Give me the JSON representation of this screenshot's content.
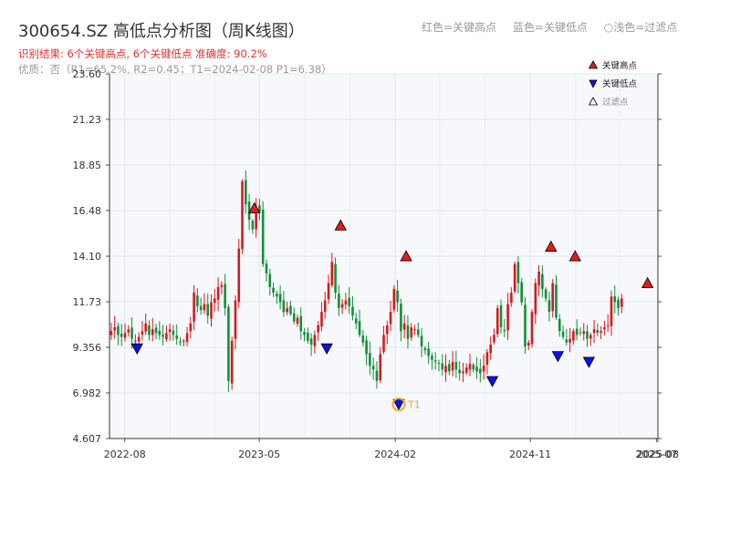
{
  "header": {
    "title": "300654.SZ 高低点分析图（周K线图）",
    "legend_red": "红色=关键高点",
    "legend_blue": "蓝色=关键低点",
    "legend_hollow": "○浅色=过滤点",
    "result_text": "识别结果: 6个关键高点, 6个关键低点  准确度: 90.2%",
    "quality_text": "优质：否（R1=65.2%, R2=0.45；T1=2024-02-08 P1=6.38）"
  },
  "colors": {
    "up": "#d9191c",
    "down": "#138f3b",
    "high_marker": "#e41a1c",
    "low_marker": "#1010e6",
    "t1_ring": "#f5a623",
    "plot_bg": "#f6f8fb",
    "result_text": "#e0302f"
  },
  "chart_data": {
    "type": "candlestick",
    "title": "300654.SZ 高低点分析图（周K线图）",
    "x_start": "2022-07-01",
    "x_end": "2025-07-18",
    "x_ticks": [
      "2022-08",
      "2023-05",
      "2024-02",
      "2024-11",
      "2025-07",
      "2025-08"
    ],
    "ylim": [
      4.607,
      23.6
    ],
    "y_ticks": [
      "4.607",
      "6.982",
      "9.356",
      "11.73",
      "14.10",
      "16.48",
      "18.85",
      "21.23",
      "23.60"
    ],
    "legend": [
      {
        "label": "关键高点",
        "marker": "triangle-up",
        "color": "#e41a1c"
      },
      {
        "label": "关键低点",
        "marker": "triangle-down",
        "color": "#1010e6"
      },
      {
        "label": "过滤点",
        "marker": "triangle-up-hollow",
        "color": "#ffffff"
      }
    ],
    "ohlc_levels": [
      10.2,
      10.4,
      10.0,
      9.9,
      10.1,
      10.3,
      9.8,
      9.7,
      9.9,
      10.2,
      10.6,
      10.0,
      10.3,
      10.1,
      10.0,
      9.9,
      10.1,
      10.3,
      10.0,
      9.8,
      9.6,
      9.7,
      10.1,
      10.6,
      12.2,
      11.5,
      11.3,
      11.6,
      11.0,
      11.7,
      11.9,
      12.5,
      12.6,
      11.4,
      7.6,
      9.7,
      11.8,
      14.5,
      18.0,
      16.8,
      16.0,
      15.5,
      16.7,
      16.4,
      13.7,
      13.2,
      12.5,
      12.2,
      12.0,
      11.7,
      11.2,
      11.4,
      11.1,
      10.7,
      10.9,
      10.2,
      10.0,
      9.7,
      9.5,
      10.0,
      10.5,
      11.2,
      11.8,
      12.7,
      13.8,
      12.2,
      11.4,
      11.6,
      11.8,
      11.5,
      11.0,
      10.6,
      10.0,
      9.6,
      9.0,
      8.4,
      8.2,
      7.6,
      9.0,
      10.0,
      10.5,
      11.2,
      12.4,
      11.7,
      10.2,
      10.6,
      9.8,
      10.4,
      10.3,
      10.0,
      9.4,
      9.2,
      8.9,
      8.7,
      8.6,
      8.5,
      8.2,
      8.4,
      8.1,
      8.6,
      8.2,
      8.0,
      8.1,
      8.3,
      8.5,
      8.2,
      8.1,
      8.0,
      8.4,
      9.1,
      9.5,
      10.0,
      11.4,
      10.4,
      10.2,
      11.6,
      12.2,
      13.7,
      12.7,
      11.7,
      9.4,
      9.6,
      11.2,
      12.7,
      13.3,
      12.4,
      11.9,
      11.2,
      12.7,
      10.9,
      10.2,
      9.9,
      9.6,
      9.8,
      10.2,
      10.0,
      10.1,
      10.2,
      9.8,
      10.0,
      10.3,
      10.1,
      10.2,
      10.4,
      10.5,
      12.0,
      11.7,
      11.4,
      11.9
    ],
    "key_highs": [
      {
        "date": "2023-04-21",
        "value": 16.6
      },
      {
        "date": "2023-10-13",
        "value": 15.7
      },
      {
        "date": "2024-02-23",
        "value": 14.1
      },
      {
        "date": "2024-12-13",
        "value": 14.6
      },
      {
        "date": "2025-01-31",
        "value": 14.1
      },
      {
        "date": "2025-06-27",
        "value": 12.7
      }
    ],
    "key_lows": [
      {
        "date": "2022-08-26",
        "value": 9.3
      },
      {
        "date": "2023-09-15",
        "value": 9.3
      },
      {
        "date": "2024-02-08",
        "value": 6.4
      },
      {
        "date": "2024-08-16",
        "value": 7.6
      },
      {
        "date": "2024-12-27",
        "value": 8.9
      },
      {
        "date": "2025-02-28",
        "value": 8.6
      }
    ],
    "t1": {
      "label": "T1",
      "date": "2024-02-08",
      "value": 6.38
    }
  }
}
